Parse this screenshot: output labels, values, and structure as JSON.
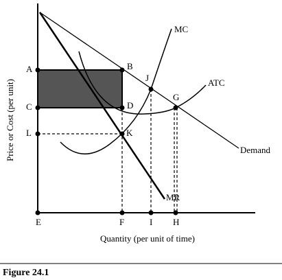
{
  "points": {
    "A": "A",
    "B": "B",
    "C": "C",
    "D": "D",
    "L": "L",
    "K": "K",
    "J": "J",
    "G": "G",
    "E": "E",
    "F": "F",
    "I": "I",
    "H": "H"
  },
  "curves": {
    "mc": "MC",
    "atc": "ATC",
    "demand": "Demand",
    "mr": "MR"
  },
  "axes": {
    "y_label": "Price or Cost (per unit)",
    "x_label": "Quantity (per unit of time)"
  },
  "caption": "Figure 24.1"
}
